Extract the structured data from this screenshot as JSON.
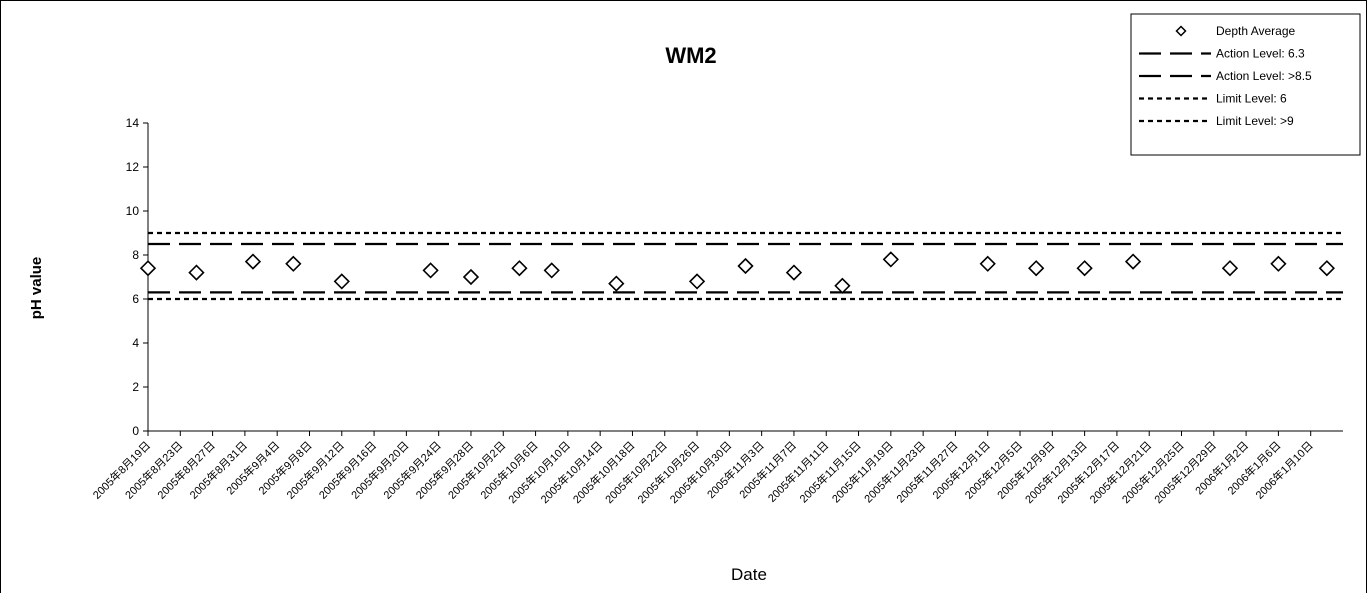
{
  "chart_data": {
    "type": "scatter",
    "title": "WM2",
    "xlabel": "Date",
    "ylabel": "pH value",
    "ylim": [
      0,
      14
    ],
    "yticks": [
      0,
      2,
      4,
      6,
      8,
      10,
      12,
      14
    ],
    "xlim": [
      "2005-08-19",
      "2006-01-14"
    ],
    "xtick_labels": [
      "2005年8月19日",
      "2005年8月23日",
      "2005年8月27日",
      "2005年8月31日",
      "2005年9月4日",
      "2005年9月8日",
      "2005年9月12日",
      "2005年9月16日",
      "2005年9月20日",
      "2005年9月24日",
      "2005年9月28日",
      "2005年10月2日",
      "2005年10月6日",
      "2005年10月10日",
      "2005年10月14日",
      "2005年10月18日",
      "2005年10月22日",
      "2005年10月26日",
      "2005年10月30日",
      "2005年11月3日",
      "2005年11月7日",
      "2005年11月11日",
      "2005年11月15日",
      "2005年11月19日",
      "2005年11月23日",
      "2005年11月27日",
      "2005年12月1日",
      "2005年12月5日",
      "2005年12月9日",
      "2005年12月13日",
      "2005年12月17日",
      "2005年12月21日",
      "2005年12月25日",
      "2005年12月29日",
      "2006年1月2日",
      "2006年1月6日",
      "2006年1月10日"
    ],
    "series": [
      {
        "name": "Depth Average",
        "marker": "diamond",
        "points": [
          {
            "x": "2005-08-19",
            "y": 7.4
          },
          {
            "x": "2005-08-25",
            "y": 7.2
          },
          {
            "x": "2005-09-01",
            "y": 7.7
          },
          {
            "x": "2005-09-06",
            "y": 7.6
          },
          {
            "x": "2005-09-12",
            "y": 6.8
          },
          {
            "x": "2005-09-23",
            "y": 7.3
          },
          {
            "x": "2005-09-28",
            "y": 7.0
          },
          {
            "x": "2005-10-04",
            "y": 7.4
          },
          {
            "x": "2005-10-08",
            "y": 7.3
          },
          {
            "x": "2005-10-16",
            "y": 6.7
          },
          {
            "x": "2005-10-26",
            "y": 6.8
          },
          {
            "x": "2005-11-01",
            "y": 7.5
          },
          {
            "x": "2005-11-07",
            "y": 7.2
          },
          {
            "x": "2005-11-13",
            "y": 6.6
          },
          {
            "x": "2005-11-19",
            "y": 7.8
          },
          {
            "x": "2005-12-01",
            "y": 7.6
          },
          {
            "x": "2005-12-07",
            "y": 7.4
          },
          {
            "x": "2005-12-13",
            "y": 7.4
          },
          {
            "x": "2005-12-19",
            "y": 7.7
          },
          {
            "x": "2005-12-31",
            "y": 7.4
          },
          {
            "x": "2006-01-06",
            "y": 7.6
          },
          {
            "x": "2006-01-12",
            "y": 7.4
          }
        ]
      }
    ],
    "reference_lines": [
      {
        "name": "Action Level: 6.3",
        "y": 6.3,
        "style": "dashed"
      },
      {
        "name": "Action Level: >8.5",
        "y": 8.5,
        "style": "dashed"
      },
      {
        "name": "Limit Level: 6",
        "y": 6,
        "style": "dotted"
      },
      {
        "name": "Limit Level: >9",
        "y": 9,
        "style": "dotted"
      }
    ],
    "legend_position": "top-right",
    "grid": false
  }
}
